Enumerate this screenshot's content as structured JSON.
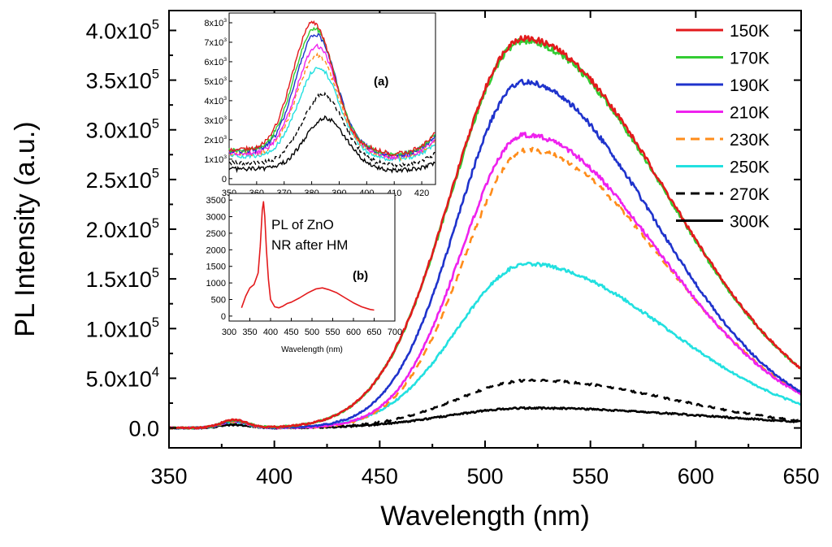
{
  "colors": {
    "150K": "#e31a1c",
    "170K": "#33cc33",
    "190K": "#1f33cc",
    "210K": "#ee22ee",
    "230K": "#ff8c1a",
    "250K": "#22e0e0",
    "270K": "#000000",
    "300K": "#000000",
    "inset_b": "#e31a1c",
    "axis": "#000000"
  },
  "chart_data": [
    {
      "id": "main",
      "type": "line",
      "title": "",
      "xlabel": "Wavelength (nm)",
      "ylabel": "PL Intensity (a.u.)",
      "xlim": [
        350,
        650
      ],
      "ylim": [
        -20000,
        420000
      ],
      "xticks": [
        350,
        400,
        450,
        500,
        550,
        600,
        650
      ],
      "xtick_labels": [
        "350",
        "400",
        "450",
        "500",
        "550",
        "600",
        "650"
      ],
      "yticks": [
        {
          "value": 0,
          "mantissa": "0.0",
          "exp": ""
        },
        {
          "value": 50000,
          "mantissa": "5.0x10",
          "exp": "4"
        },
        {
          "value": 100000,
          "mantissa": "1.0x10",
          "exp": "5"
        },
        {
          "value": 150000,
          "mantissa": "1.5x10",
          "exp": "5"
        },
        {
          "value": 200000,
          "mantissa": "2.0x10",
          "exp": "5"
        },
        {
          "value": 250000,
          "mantissa": "2.5x10",
          "exp": "5"
        },
        {
          "value": 300000,
          "mantissa": "3.0x10",
          "exp": "5"
        },
        {
          "value": 350000,
          "mantissa": "3.5x10",
          "exp": "5"
        },
        {
          "value": 400000,
          "mantissa": "4.0x10",
          "exp": "5"
        }
      ],
      "grid": false,
      "legend_position": "top-right",
      "series": [
        {
          "name": "150K",
          "style": "solid",
          "uv_peak": 8000,
          "green_peak": 392000,
          "green_center": 518,
          "green_sigma_left": 34,
          "green_sigma_right": 68
        },
        {
          "name": "170K",
          "style": "solid",
          "uv_peak": 7500,
          "green_peak": 389000,
          "green_center": 518,
          "green_sigma_left": 34,
          "green_sigma_right": 68
        },
        {
          "name": "190K",
          "style": "solid",
          "uv_peak": 7200,
          "green_peak": 348000,
          "green_center": 518,
          "green_sigma_left": 31,
          "green_sigma_right": 62
        },
        {
          "name": "210K",
          "style": "solid",
          "uv_peak": 6800,
          "green_peak": 295000,
          "green_center": 519,
          "green_sigma_left": 30,
          "green_sigma_right": 63
        },
        {
          "name": "230K",
          "style": "dashed",
          "uv_peak": 6200,
          "green_peak": 280000,
          "green_center": 520,
          "green_sigma_left": 30,
          "green_sigma_right": 64
        },
        {
          "name": "250K",
          "style": "solid",
          "uv_peak": 5800,
          "green_peak": 165000,
          "green_center": 520,
          "green_sigma_left": 33,
          "green_sigma_right": 66
        },
        {
          "name": "270K",
          "style": "dashed",
          "uv_peak": 4200,
          "green_peak": 48000,
          "green_center": 522,
          "green_sigma_left": 35,
          "green_sigma_right": 66
        },
        {
          "name": "300K",
          "style": "solid",
          "uv_peak": 3200,
          "green_peak": 20000,
          "green_center": 520,
          "green_sigma_left": 38,
          "green_sigma_right": 85
        }
      ]
    },
    {
      "id": "inset_a",
      "type": "line",
      "tag": "(a)",
      "xlim": [
        350,
        425
      ],
      "ylim": [
        -300,
        8500
      ],
      "xticks": [
        350,
        360,
        370,
        380,
        390,
        400,
        410,
        420
      ],
      "xtick_labels": [
        "350",
        "360",
        "370",
        "380",
        "390",
        "400",
        "410",
        "420"
      ],
      "yticks": [
        {
          "value": 0,
          "mantissa": "0",
          "exp": ""
        },
        {
          "value": 1000,
          "mantissa": "1x10",
          "exp": "3"
        },
        {
          "value": 2000,
          "mantissa": "2x10",
          "exp": "3"
        },
        {
          "value": 3000,
          "mantissa": "3x10",
          "exp": "3"
        },
        {
          "value": 4000,
          "mantissa": "4x10",
          "exp": "3"
        },
        {
          "value": 5000,
          "mantissa": "5x10",
          "exp": "3"
        },
        {
          "value": 6000,
          "mantissa": "6x10",
          "exp": "3"
        },
        {
          "value": 7000,
          "mantissa": "7x10",
          "exp": "3"
        },
        {
          "value": 8000,
          "mantissa": "8x10",
          "exp": "3"
        }
      ],
      "series": [
        {
          "name": "150K",
          "style": "solid",
          "baseline": 1500,
          "peak": 8000,
          "center": 380.5
        },
        {
          "name": "170K",
          "style": "solid",
          "baseline": 1450,
          "peak": 7700,
          "center": 381
        },
        {
          "name": "190K",
          "style": "solid",
          "baseline": 1400,
          "peak": 7400,
          "center": 381.5
        },
        {
          "name": "210K",
          "style": "solid",
          "baseline": 1300,
          "peak": 6800,
          "center": 382
        },
        {
          "name": "230K",
          "style": "dashed",
          "baseline": 1250,
          "peak": 6300,
          "center": 382
        },
        {
          "name": "250K",
          "style": "solid",
          "baseline": 1150,
          "peak": 5700,
          "center": 382.5
        },
        {
          "name": "270K",
          "style": "dashed",
          "baseline": 800,
          "peak": 4300,
          "center": 384
        },
        {
          "name": "300K",
          "style": "solid",
          "baseline": 500,
          "peak": 3100,
          "center": 385
        }
      ]
    },
    {
      "id": "inset_b",
      "type": "line",
      "annotation": [
        "PL of ZnO",
        "NR after HM"
      ],
      "tag": "(b)",
      "xlabel": "Wavelength (nm)",
      "xlim": [
        300,
        700
      ],
      "ylim": [
        -150,
        3700
      ],
      "xticks": [
        300,
        350,
        400,
        450,
        500,
        550,
        600,
        650,
        700
      ],
      "xtick_labels": [
        "300",
        "350",
        "400",
        "450",
        "500",
        "550",
        "600",
        "650",
        "700"
      ],
      "yticks": [
        0,
        500,
        1000,
        1500,
        2000,
        2500,
        3000,
        3500
      ],
      "ytick_labels": [
        "0",
        "500",
        "1000",
        "1500",
        "2000",
        "2500",
        "3000",
        "3500"
      ],
      "series": [
        {
          "name": "PL of ZnO NR after HM",
          "x": [
            330,
            340,
            350,
            360,
            370,
            375,
            380,
            383,
            386,
            390,
            395,
            400,
            410,
            420,
            430,
            440,
            450,
            470,
            490,
            510,
            525,
            540,
            560,
            580,
            600,
            620,
            640,
            650
          ],
          "y": [
            250,
            600,
            850,
            950,
            1300,
            2100,
            3200,
            3450,
            3000,
            2000,
            1100,
            500,
            280,
            250,
            300,
            380,
            420,
            550,
            700,
            820,
            850,
            800,
            700,
            550,
            400,
            280,
            200,
            180
          ]
        }
      ]
    }
  ]
}
